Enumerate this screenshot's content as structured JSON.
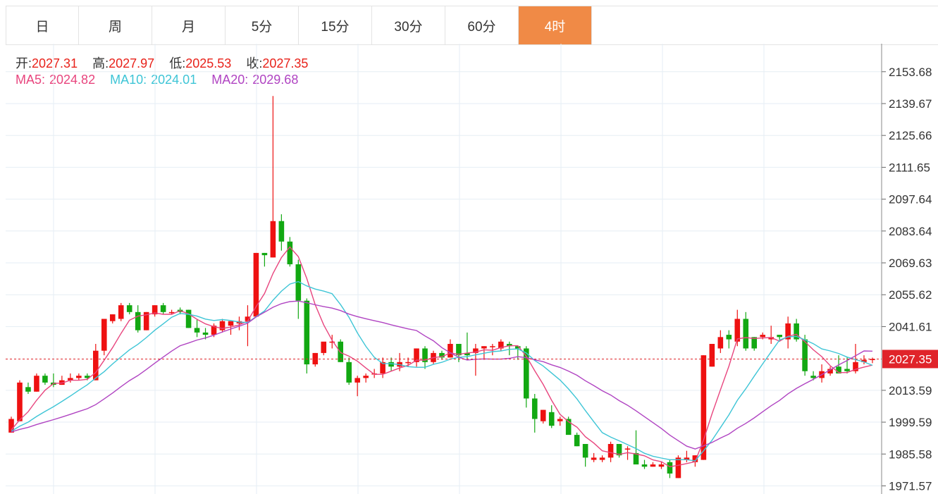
{
  "tabs": [
    {
      "label": "日",
      "active": false
    },
    {
      "label": "周",
      "active": false
    },
    {
      "label": "月",
      "active": false
    },
    {
      "label": "5分",
      "active": false
    },
    {
      "label": "15分",
      "active": false
    },
    {
      "label": "30分",
      "active": false
    },
    {
      "label": "60分",
      "active": false
    },
    {
      "label": "4时",
      "active": true
    }
  ],
  "ohlc": {
    "open_label": "开:",
    "open": "2027.31",
    "high_label": "高:",
    "high": "2027.97",
    "low_label": "低:",
    "low": "2025.53",
    "close_label": "收:",
    "close": "2027.35"
  },
  "ma": {
    "ma5_label": "MA5:",
    "ma5": "2024.82",
    "ma10_label": "MA10:",
    "ma10": "2024.01",
    "ma20_label": "MA20:",
    "ma20": "2029.68"
  },
  "colors": {
    "up": "#ee1111",
    "down": "#12a812",
    "ma5": "#e8457e",
    "ma10": "#3ec5d6",
    "ma20": "#b044c2",
    "active_tab": "#f08a46",
    "grid": "#e6eef4",
    "price_line": "#e0242a"
  },
  "chart_data": {
    "type": "candlestick",
    "y_ticks": [
      "2153.68",
      "2139.67",
      "2125.66",
      "2111.65",
      "2097.64",
      "2083.64",
      "2069.63",
      "2055.62",
      "2041.61",
      "2027.35",
      "2013.59",
      "1999.59",
      "1985.58",
      "1971.57"
    ],
    "ylim": [
      1968,
      2166
    ],
    "current_price": 2027.35,
    "current_price_label": "2027.35",
    "candles": [
      [
        1995,
        2002,
        1995,
        2001
      ],
      [
        2000,
        2018,
        2000,
        2017
      ],
      [
        2015,
        2017,
        2012,
        2013
      ],
      [
        2013,
        2021,
        2013,
        2020
      ],
      [
        2020,
        2021,
        2016,
        2017
      ],
      [
        2017,
        2021,
        2015,
        2016
      ],
      [
        2016,
        2020,
        2016,
        2018
      ],
      [
        2018,
        2021,
        2017,
        2019
      ],
      [
        2019,
        2021,
        2018,
        2020
      ],
      [
        2020,
        2021,
        2018,
        2019
      ],
      [
        2018,
        2034,
        2018,
        2031
      ],
      [
        2031,
        2045,
        2029,
        2045
      ],
      [
        2044,
        2047,
        2043,
        2047
      ],
      [
        2045,
        2052,
        2044,
        2051
      ],
      [
        2051,
        2052,
        2047,
        2048
      ],
      [
        2048,
        2051,
        2039,
        2040
      ],
      [
        2040,
        2048,
        2040,
        2048
      ],
      [
        2047,
        2051,
        2046,
        2051
      ],
      [
        2051,
        2052,
        2047,
        2048
      ],
      [
        2048,
        2049,
        2047,
        2048
      ],
      [
        2049,
        2050,
        2047,
        2048
      ],
      [
        2049,
        2049,
        2041,
        2041
      ],
      [
        2041,
        2045,
        2037,
        2039
      ],
      [
        2039,
        2041,
        2036,
        2038
      ],
      [
        2038,
        2043,
        2037,
        2042
      ],
      [
        2040,
        2045,
        2039,
        2044
      ],
      [
        2042,
        2043,
        2038,
        2044
      ],
      [
        2043,
        2046,
        2040,
        2044
      ],
      [
        2044,
        2051,
        2033,
        2046
      ],
      [
        2046,
        2074,
        2046,
        2074
      ],
      [
        2074,
        2074,
        2068,
        2073
      ],
      [
        2072,
        2143,
        2072,
        2088
      ],
      [
        2088,
        2091,
        2075,
        2079
      ],
      [
        2079,
        2081,
        2068,
        2069
      ],
      [
        2069,
        2071,
        2045,
        2053
      ],
      [
        2053,
        2054,
        2021,
        2025
      ],
      [
        2025,
        2030,
        2024,
        2030
      ],
      [
        2030,
        2034,
        2029,
        2035
      ],
      [
        2035,
        2038,
        2032,
        2035
      ],
      [
        2035,
        2036,
        2026,
        2026
      ],
      [
        2026,
        2028,
        2016,
        2017
      ],
      [
        2017,
        2020,
        2011,
        2019
      ],
      [
        2019,
        2021,
        2017,
        2020
      ],
      [
        2021,
        2023,
        2019,
        2021
      ],
      [
        2021,
        2028,
        2019,
        2026
      ],
      [
        2026,
        2028,
        2022,
        2024
      ],
      [
        2024,
        2030,
        2022,
        2026
      ],
      [
        2026,
        2028,
        2024,
        2026
      ],
      [
        2026,
        2032,
        2024,
        2032
      ],
      [
        2032,
        2033,
        2023,
        2026
      ],
      [
        2026,
        2031,
        2025,
        2030
      ],
      [
        2030,
        2031,
        2027,
        2028
      ],
      [
        2028,
        2036,
        2028,
        2034
      ],
      [
        2034,
        2034,
        2026,
        2029
      ],
      [
        2030,
        2039,
        2027,
        2029
      ],
      [
        2030,
        2034,
        2020,
        2032
      ],
      [
        2032,
        2033,
        2027,
        2033
      ],
      [
        2033,
        2034,
        2029,
        2033
      ],
      [
        2032,
        2036,
        2031,
        2035
      ],
      [
        2034,
        2035,
        2029,
        2033
      ],
      [
        2033,
        2033,
        2027,
        2032
      ],
      [
        2032,
        2033,
        2006,
        2010
      ],
      [
        2010,
        2012,
        1995,
        2001
      ],
      [
        2000,
        2005,
        1999,
        2005
      ],
      [
        2004,
        2007,
        1997,
        1998
      ],
      [
        2000,
        2002,
        1998,
        2001
      ],
      [
        2001,
        2002,
        1995,
        1994
      ],
      [
        1994,
        1995,
        1989,
        1989
      ],
      [
        1990,
        1990,
        1980,
        1984
      ],
      [
        1983,
        1986,
        1982,
        1984
      ],
      [
        1983,
        1985,
        1982,
        1984
      ],
      [
        1984,
        1991,
        1982,
        1990
      ],
      [
        1990,
        1990,
        1984,
        1985
      ],
      [
        1988,
        1989,
        1983,
        1988
      ],
      [
        1986,
        1996,
        1982,
        1981
      ],
      [
        1981,
        1983,
        1979,
        1980
      ],
      [
        1980,
        1982,
        1980,
        1981
      ],
      [
        1980,
        1982,
        1979,
        1981
      ],
      [
        1982,
        1983,
        1975,
        1977
      ],
      [
        1975,
        1985,
        1975,
        1984
      ],
      [
        1983,
        1987,
        1982,
        1984
      ],
      [
        1982,
        1985,
        1980,
        1985
      ],
      [
        1983,
        2029,
        1983,
        2029
      ],
      [
        2024,
        2034,
        2024,
        2034
      ],
      [
        2032,
        2040,
        2030,
        2037
      ],
      [
        2038,
        2040,
        2032,
        2036
      ],
      [
        2035,
        2049,
        2033,
        2045
      ],
      [
        2045,
        2048,
        2031,
        2032
      ],
      [
        2037,
        2037,
        2031,
        2032
      ],
      [
        2037,
        2039,
        2036,
        2038
      ],
      [
        2036,
        2042,
        2034,
        2037
      ],
      [
        2038,
        2038,
        2035,
        2037
      ],
      [
        2036,
        2046,
        2032,
        2043
      ],
      [
        2043,
        2045,
        2035,
        2036
      ],
      [
        2036,
        2038,
        2020,
        2022
      ],
      [
        2020,
        2022,
        2018,
        2019
      ],
      [
        2019,
        2025,
        2017,
        2022
      ],
      [
        2021,
        2024,
        2020,
        2023
      ],
      [
        2024,
        2029,
        2022,
        2021
      ],
      [
        2023,
        2028,
        2021,
        2022
      ],
      [
        2022,
        2034,
        2021,
        2026
      ],
      [
        2026,
        2029,
        2025,
        2027
      ],
      [
        2027.31,
        2027.97,
        2025.53,
        2027.35
      ]
    ]
  }
}
